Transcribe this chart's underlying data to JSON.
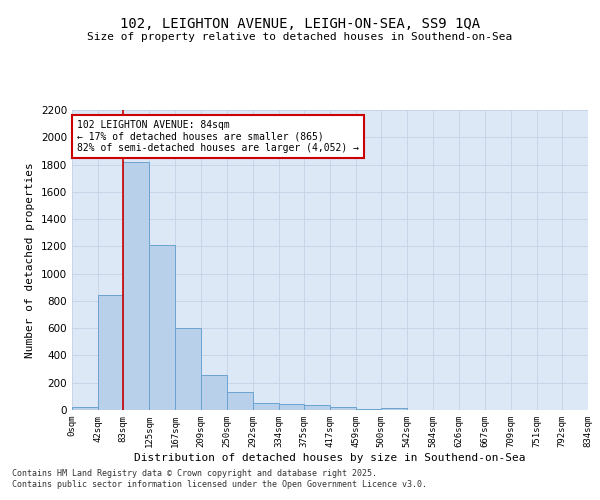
{
  "title_line1": "102, LEIGHTON AVENUE, LEIGH-ON-SEA, SS9 1QA",
  "title_line2": "Size of property relative to detached houses in Southend-on-Sea",
  "xlabel": "Distribution of detached houses by size in Southend-on-Sea",
  "ylabel": "Number of detached properties",
  "bar_edges": [
    0,
    42,
    83,
    125,
    167,
    209,
    250,
    292,
    334,
    375,
    417,
    459,
    500,
    542,
    584,
    626,
    667,
    709,
    751,
    792,
    834
  ],
  "bar_heights": [
    25,
    845,
    1820,
    1210,
    600,
    255,
    130,
    50,
    47,
    35,
    20,
    5,
    15,
    0,
    0,
    0,
    0,
    0,
    0,
    0
  ],
  "bar_color": "#b8d0ea",
  "bar_edgecolor": "#6ba3d0",
  "red_line_x": 83,
  "annotation_text": "102 LEIGHTON AVENUE: 84sqm\n← 17% of detached houses are smaller (865)\n82% of semi-detached houses are larger (4,052) →",
  "annotation_box_edgecolor": "#cc0000",
  "annotation_box_facecolor": "#ffffff",
  "ylim_max": 2200,
  "yticks": [
    0,
    200,
    400,
    600,
    800,
    1000,
    1200,
    1400,
    1600,
    1800,
    2000,
    2200
  ],
  "tick_labels": [
    "0sqm",
    "42sqm",
    "83sqm",
    "125sqm",
    "167sqm",
    "209sqm",
    "250sqm",
    "292sqm",
    "334sqm",
    "375sqm",
    "417sqm",
    "459sqm",
    "500sqm",
    "542sqm",
    "584sqm",
    "626sqm",
    "667sqm",
    "709sqm",
    "751sqm",
    "792sqm",
    "834sqm"
  ],
  "grid_color": "#c8d4e8",
  "bg_color": "#dce8f5",
  "footer_line1": "Contains HM Land Registry data © Crown copyright and database right 2025.",
  "footer_line2": "Contains public sector information licensed under the Open Government Licence v3.0."
}
